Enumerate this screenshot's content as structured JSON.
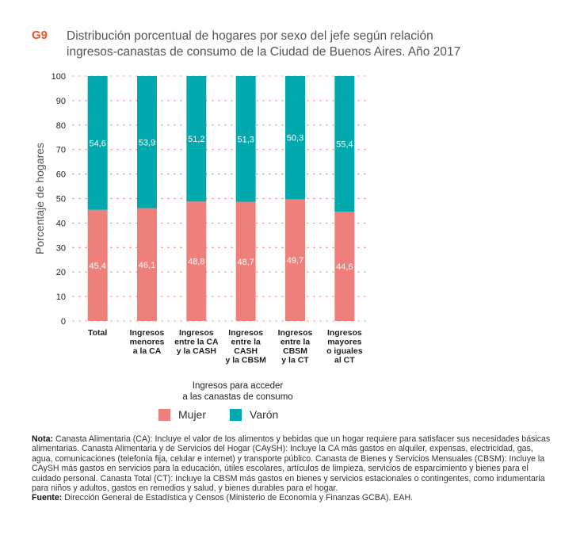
{
  "header": {
    "code": "G9",
    "title_line1": "Distribución porcentual de hogares por sexo del jefe según relación",
    "title_line2": "ingresos-canastas de consumo de la Ciudad de Buenos Aires. Año 2017"
  },
  "chart_data": {
    "type": "bar",
    "stacked": true,
    "ylabel": "Porcentaje de hogares",
    "xlabel": "Ingresos para acceder a las canastas de consumo",
    "xlabel_lines": [
      "Ingresos para acceder",
      "a las canastas de consumo"
    ],
    "ylim": [
      0,
      100
    ],
    "yticks": [
      0,
      10,
      20,
      30,
      40,
      50,
      60,
      70,
      80,
      90,
      100
    ],
    "grid": true,
    "categories": [
      [
        "Total"
      ],
      [
        "Ingresos",
        "menores",
        "a la CA"
      ],
      [
        "Ingresos",
        "entre la CA",
        "y la CASH"
      ],
      [
        "Ingresos",
        "entre la",
        "CASH",
        "y la CBSM"
      ],
      [
        "Ingresos",
        "entre la",
        "CBSM",
        "y la CT"
      ],
      [
        "Ingresos",
        "mayores",
        "o iguales",
        "al CT"
      ]
    ],
    "series": [
      {
        "name": "Mujer",
        "color": "#ef7f7a",
        "values": [
          45.4,
          46.1,
          48.8,
          48.7,
          49.7,
          44.6
        ],
        "labels": [
          "45,4",
          "46,1",
          "48,8",
          "48,7",
          "49,7",
          "44,6"
        ]
      },
      {
        "name": "Varón",
        "color": "#00a9ad",
        "values": [
          54.6,
          53.9,
          51.2,
          51.3,
          50.3,
          55.4
        ],
        "labels": [
          "54,6",
          "53,9",
          "51,2",
          "51,3",
          "50,3",
          "55,4"
        ]
      }
    ],
    "legend_position": "bottom"
  },
  "notes": {
    "nota_label": "Nota:",
    "nota_text": "Canasta Alimentaria (CA): Incluye el valor de los alimentos y bebidas que un hogar requiere para satisfacer sus necesidades básicas alimentarias. Canasta Alimentaria y de Servicios del Hogar (CAySH): Incluye la CA más gastos en alquiler, expensas, electricidad, gas, agua, comunicaciones (telefonía fija, celular e internet) y transporte público. Canasta de Bienes y Servicios Mensuales (CBSM): Incluye la CAySH más gastos en servicios para la educación, útiles escolares, artículos de limpieza, servicios de esparcimiento y bienes para el cuidado personal. Canasta Total (CT): Incluye la CBSM más gastos en bienes y servicios estacionales o contingentes, como indumentaria para niños y adultos, gastos en remedios y salud, y bienes durables para el hogar.",
    "fuente_label": "Fuente:",
    "fuente_text": "Dirección General de Estadística y Censos (Ministerio de Economía y Finanzas GCBA). EAH."
  }
}
